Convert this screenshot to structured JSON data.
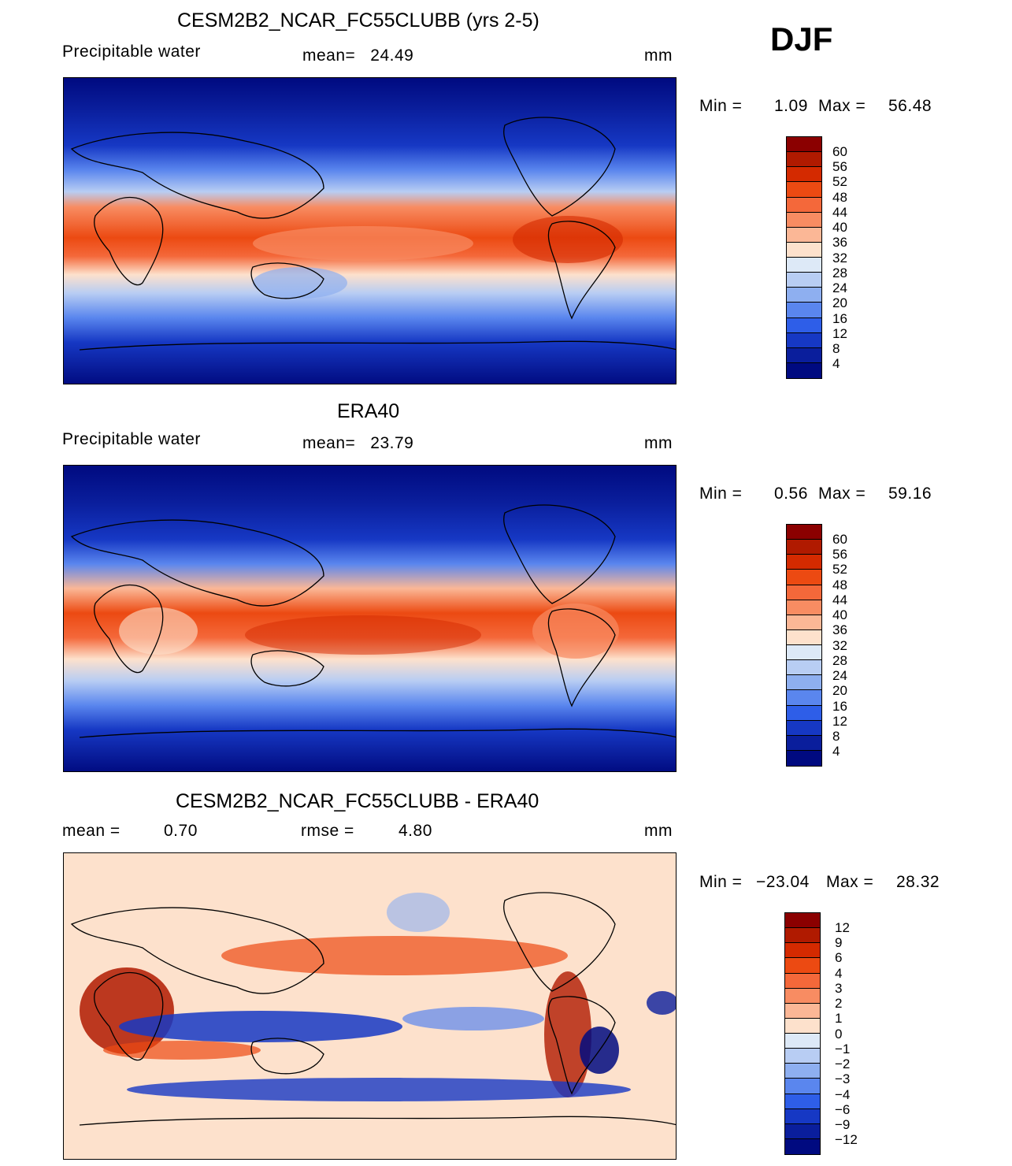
{
  "season": "DJF",
  "units": "mm",
  "panels": [
    {
      "title": "CESM2B2_NCAR_FC55CLUBB (yrs 2-5)",
      "variable": "Precipitable water",
      "stat_text": "mean=   24.49",
      "units": "mm",
      "min_label": "Min =",
      "min_value": "1.09",
      "max_label": "Max =",
      "max_value": "56.48",
      "colorbar_labels": [
        "60",
        "56",
        "52",
        "48",
        "44",
        "40",
        "36",
        "32",
        "28",
        "24",
        "20",
        "16",
        "12",
        "8",
        "4"
      ]
    },
    {
      "title": "ERA40",
      "variable": "Precipitable water",
      "stat_text": "mean=   23.79",
      "units": "mm",
      "min_label": "Min =",
      "min_value": "0.56",
      "max_label": "Max =",
      "max_value": "59.16",
      "colorbar_labels": [
        "60",
        "56",
        "52",
        "48",
        "44",
        "40",
        "36",
        "32",
        "28",
        "24",
        "20",
        "16",
        "12",
        "8",
        "4"
      ]
    },
    {
      "title": "CESM2B2_NCAR_FC55CLUBB - ERA40",
      "mean_label": "mean =",
      "mean_value": "0.70",
      "rmse_label": "rmse =",
      "rmse_value": "4.80",
      "units": "mm",
      "min_label": "Min =",
      "min_value": "−23.04",
      "max_label": "Max =",
      "max_value": "28.32",
      "colorbar_labels": [
        "12",
        "9",
        "6",
        "4",
        "3",
        "2",
        "1",
        "0",
        "−1",
        "−2",
        "−3",
        "−4",
        "−6",
        "−9",
        "−12"
      ]
    }
  ],
  "palette": [
    "#8b0000",
    "#b01a00",
    "#d42a00",
    "#ec4a12",
    "#f4683a",
    "#f88c62",
    "#fbb796",
    "#fde1cc",
    "#dde9f7",
    "#b8cdf3",
    "#8eaff0",
    "#5a86ee",
    "#2e5ee8",
    "#1638c4",
    "#0a1e9c",
    "#000a80"
  ],
  "diff_palette": [
    "#8b0000",
    "#b01a00",
    "#d42a00",
    "#ec4a12",
    "#f4683a",
    "#f88c62",
    "#fbb796",
    "#fde1cc",
    "#dde9f7",
    "#b8cdf3",
    "#8eaff0",
    "#5a86ee",
    "#2e5ee8",
    "#1638c4",
    "#0a1e9c",
    "#000a80"
  ]
}
